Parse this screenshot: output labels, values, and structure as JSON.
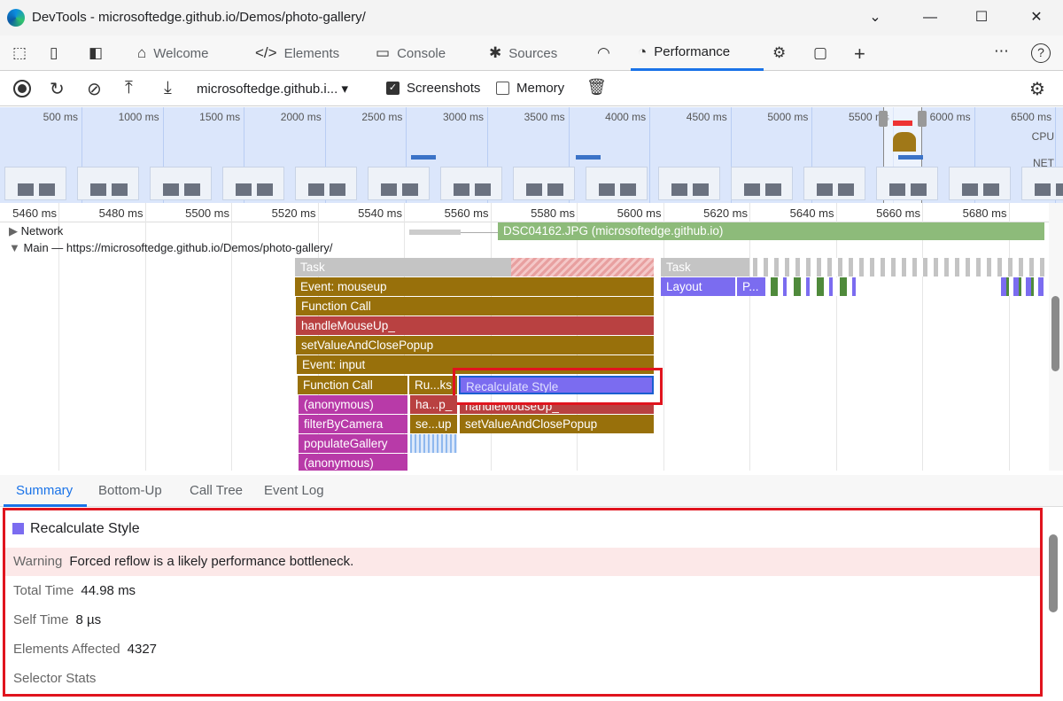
{
  "window": {
    "title": "DevTools - microsoftedge.github.io/Demos/photo-gallery/",
    "minimize": "—",
    "maximize": "☐",
    "close": "✕",
    "dropdown": "⌄"
  },
  "tabs": [
    {
      "label": "Welcome",
      "icon": "home-icon"
    },
    {
      "label": "Elements",
      "icon": "code-icon"
    },
    {
      "label": "Console",
      "icon": "console-icon"
    },
    {
      "label": "Sources",
      "icon": "bug-icon"
    },
    {
      "label": "Performance",
      "icon": "performance-icon",
      "active": true
    }
  ],
  "toolbar": {
    "target": "microsoftedge.github.i...",
    "screenshots_label": "Screenshots",
    "screenshots_checked": true,
    "memory_label": "Memory",
    "memory_checked": false
  },
  "overview": {
    "ticks": [
      "500 ms",
      "1000 ms",
      "1500 ms",
      "2000 ms",
      "2500 ms",
      "3000 ms",
      "3500 ms",
      "4000 ms",
      "4500 ms",
      "5000 ms",
      "5500 ms",
      "6000 ms",
      "6500 ms"
    ],
    "cpu_label": "CPU",
    "net_label": "NET"
  },
  "ruler": {
    "ticks": [
      "5460 ms",
      "5480 ms",
      "5500 ms",
      "5520 ms",
      "5540 ms",
      "5560 ms",
      "5580 ms",
      "5600 ms",
      "5620 ms",
      "5640 ms",
      "5660 ms",
      "5680 ms"
    ]
  },
  "tracks": {
    "network_label": "Network",
    "network_request": "DSC04162.JPG (microsoftedge.github.io)",
    "main_label": "Main — https://microsoftedge.github.io/Demos/photo-gallery/"
  },
  "flame": {
    "task": "Task",
    "task2": "Task",
    "mouseup": "Event: mouseup",
    "layout": "Layout",
    "paint": "P...",
    "function_call": "Function Call",
    "handle_mouse_up": "handleMouseUp_",
    "set_value": "setValueAndClosePopup",
    "event_input": "Event: input",
    "function_call2": "Function Call",
    "run_tasks": "Ru...ks",
    "recalc": "Recalculate Style",
    "anonymous": "(anonymous)",
    "ha_p": "ha...p_",
    "handle_mouse_up2": "handleMouseUp_",
    "filter": "filterByCamera",
    "se_up": "se...up",
    "set_value2": "setValueAndClosePopup",
    "populate": "populateGallery",
    "anonymous2": "(anonymous)"
  },
  "bottom_tabs": [
    {
      "label": "Summary",
      "active": true
    },
    {
      "label": "Bottom-Up"
    },
    {
      "label": "Call Tree"
    },
    {
      "label": "Event Log"
    }
  ],
  "summary": {
    "title": "Recalculate Style",
    "color": "#7b6cf0",
    "warning_label": "Warning",
    "warning_text": "Forced reflow is a likely performance bottleneck.",
    "total_time_label": "Total Time",
    "total_time": "44.98 ms",
    "self_time_label": "Self Time",
    "self_time": "8 µs",
    "elements_label": "Elements Affected",
    "elements": "4327",
    "selector_stats_label": "Selector Stats"
  }
}
